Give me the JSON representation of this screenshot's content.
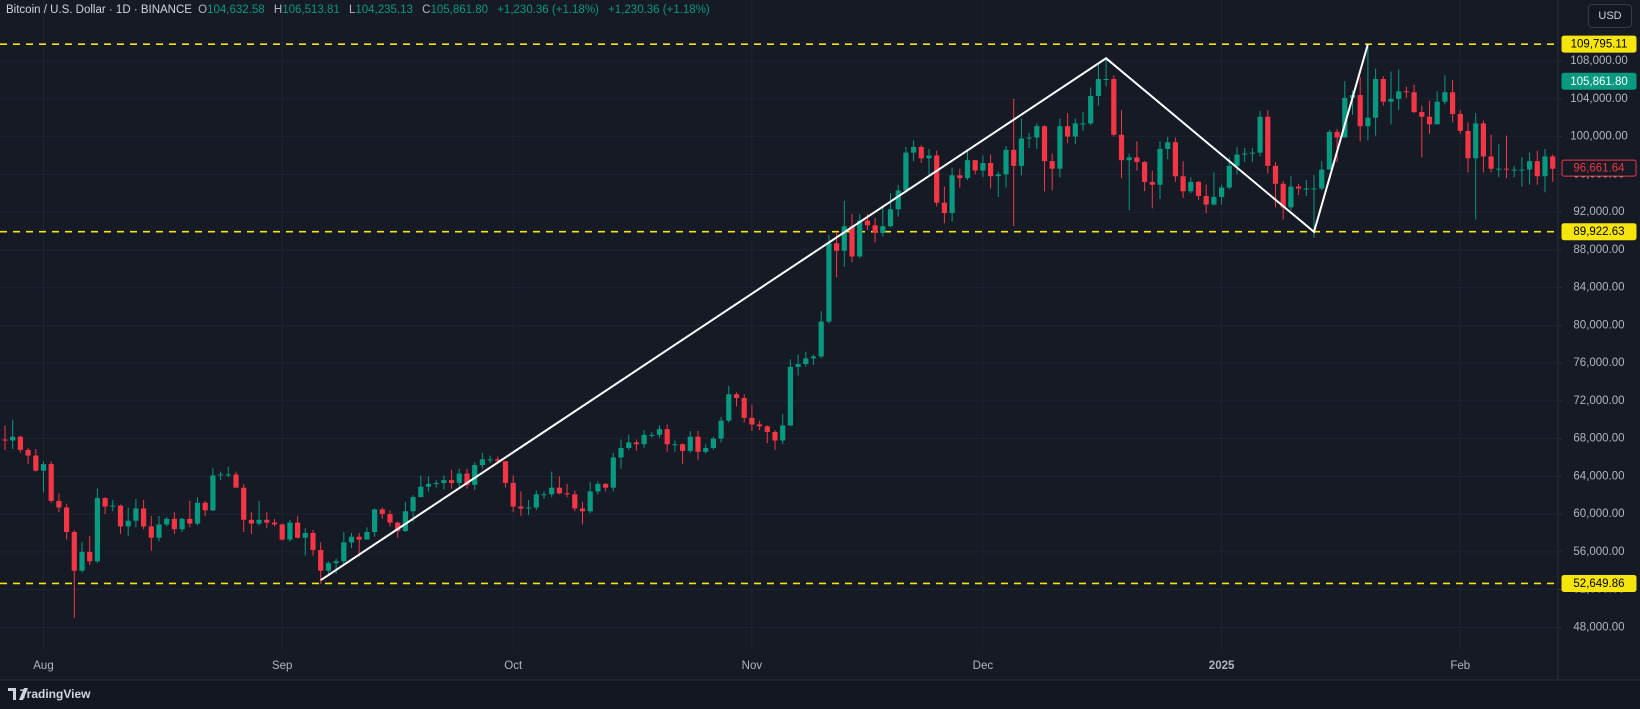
{
  "header": {
    "symbol": "Bitcoin / U.S. Dollar · 1D · BINANCE",
    "ohlc": [
      {
        "label": "O",
        "value": "104,632.58"
      },
      {
        "label": "H",
        "value": "106,513.81"
      },
      {
        "label": "L",
        "value": "104,235.13"
      },
      {
        "label": "C",
        "value": "105,861.80"
      }
    ],
    "changes": [
      "+1,230.36 (+1.18%)",
      "+1,230.36 (+1.18%)"
    ],
    "currency": "USD"
  },
  "footer": {
    "brand": "TradingView"
  },
  "chart_data": {
    "type": "candlestick",
    "grid": true,
    "up_color": "#089981",
    "down_color": "#f23645",
    "categories": [
      null,
      null,
      null,
      null,
      null,
      "Aug",
      null,
      null,
      null,
      null,
      null,
      null,
      null,
      null,
      null,
      null,
      null,
      null,
      null,
      null,
      null,
      null,
      null,
      null,
      null,
      null,
      null,
      null,
      null,
      null,
      null,
      null,
      null,
      null,
      null,
      null,
      "Sep",
      null,
      null,
      null,
      null,
      null,
      null,
      null,
      null,
      null,
      null,
      null,
      null,
      null,
      null,
      null,
      null,
      null,
      null,
      null,
      null,
      null,
      null,
      null,
      null,
      null,
      null,
      null,
      null,
      null,
      "Oct",
      null,
      null,
      null,
      null,
      null,
      null,
      null,
      null,
      null,
      null,
      null,
      null,
      null,
      null,
      null,
      null,
      null,
      null,
      null,
      null,
      null,
      null,
      null,
      null,
      null,
      null,
      null,
      null,
      null,
      null,
      "Nov",
      null,
      null,
      null,
      null,
      null,
      null,
      null,
      null,
      null,
      null,
      null,
      null,
      null,
      null,
      null,
      null,
      null,
      null,
      null,
      null,
      null,
      null,
      null,
      null,
      null,
      null,
      null,
      null,
      null,
      "Dec",
      null,
      null,
      null,
      null,
      null,
      null,
      null,
      null,
      null,
      null,
      null,
      null,
      null,
      null,
      null,
      null,
      null,
      null,
      null,
      null,
      null,
      null,
      null,
      null,
      null,
      null,
      null,
      null,
      null,
      null,
      "2025",
      null,
      null,
      null,
      null,
      null,
      null,
      null,
      null,
      null,
      null,
      null,
      null,
      null,
      null,
      null,
      null,
      null,
      null,
      null,
      null,
      null,
      null,
      null,
      null,
      null,
      null,
      null,
      null,
      null,
      null,
      "Feb",
      null,
      null,
      null,
      null,
      null,
      null,
      null,
      null,
      null,
      null,
      null,
      null
    ],
    "open": [
      67900,
      67800,
      68200,
      66800,
      66200,
      64600,
      65300,
      61400,
      60700,
      58100,
      54000,
      56000,
      55000,
      61700,
      60800,
      60900,
      58700,
      59300,
      60600,
      58700,
      57500,
      58900,
      59500,
      58400,
      59500,
      59000,
      61200,
      60400,
      64100,
      64200,
      64200,
      62800,
      59400,
      59000,
      59400,
      59100,
      58900,
      57300,
      59100,
      57500,
      58000,
      56200,
      54000,
      54800,
      55000,
      57000,
      57600,
      57300,
      58100,
      60500,
      60000,
      59100,
      58200,
      60300,
      61800,
      62900,
      63200,
      63300,
      63600,
      63300,
      64300,
      63100,
      65200,
      65800,
      65800,
      65600,
      63300,
      60800,
      60600,
      60700,
      62100,
      62100,
      62800,
      62200,
      62100,
      60600,
      60300,
      62400,
      63200,
      62800,
      66000,
      67000,
      67600,
      67400,
      68400,
      68400,
      69000,
      67400,
      67400,
      66700,
      68200,
      66600,
      67000,
      68000,
      69900,
      72700,
      72300,
      70200,
      69500,
      69300,
      68700,
      67800,
      69400,
      75600,
      75900,
      76500,
      76700,
      80400,
      88700,
      87900,
      90500,
      87300,
      91100,
      90600,
      89800,
      90500,
      92300,
      94300,
      98300,
      98900,
      97700,
      98000,
      93000,
      91900,
      95900,
      95600,
      97500,
      96400,
      97200,
      95800,
      96000,
      98600,
      96900,
      99800,
      99900,
      101100,
      97400,
      96600,
      101100,
      100000,
      101400,
      101400,
      104300,
      106100,
      106100,
      100200,
      97500,
      97800,
      97300,
      95200,
      94900,
      98700,
      99400,
      95800,
      94200,
      95200,
      93700,
      92800,
      93600,
      94600,
      96900,
      98100,
      98200,
      98300,
      102100,
      96900,
      95000,
      92500,
      94700,
      94500,
      94500,
      94500,
      96500,
      100500,
      99900,
      104100,
      104400,
      101100,
      102000,
      106100,
      103700,
      104000,
      104800,
      104700,
      102600,
      102100,
      101300,
      103700,
      104700,
      102400,
      100600,
      97700,
      101400,
      97900,
      96600,
      96600,
      96500,
      96500,
      96500,
      97400,
      95800,
      97900
    ],
    "high": [
      69400,
      70000,
      68300,
      67000,
      66900,
      65600,
      65600,
      62200,
      61100,
      58300,
      57000,
      57700,
      62700,
      61800,
      61500,
      61000,
      60700,
      61600,
      61500,
      59800,
      59800,
      59700,
      60200,
      59600,
      61400,
      61800,
      61400,
      64900,
      64500,
      65000,
      64500,
      63200,
      60200,
      61400,
      60200,
      59500,
      59000,
      59400,
      59800,
      58500,
      58300,
      57000,
      55000,
      55300,
      58100,
      58000,
      58000,
      58600,
      60600,
      60700,
      60400,
      59200,
      61300,
      62000,
      64100,
      64000,
      63600,
      64100,
      64700,
      64800,
      64800,
      65500,
      66500,
      66200,
      66100,
      65600,
      64100,
      62400,
      61500,
      62500,
      62400,
      64500,
      64000,
      63200,
      62500,
      61300,
      63400,
      63500,
      63300,
      66500,
      67900,
      68400,
      67900,
      68900,
      68700,
      69400,
      69500,
      67800,
      67500,
      68800,
      68800,
      67400,
      68200,
      70300,
      73600,
      72900,
      72700,
      71600,
      69900,
      69400,
      68900,
      70600,
      76400,
      76900,
      77200,
      76900,
      81500,
      89600,
      89900,
      93200,
      91800,
      91800,
      91800,
      91400,
      92600,
      94000,
      94900,
      98900,
      99600,
      99100,
      98700,
      98500,
      94700,
      96700,
      96600,
      98700,
      97500,
      98000,
      98100,
      96300,
      99000,
      104000,
      101900,
      100400,
      101400,
      101200,
      98200,
      101900,
      102500,
      101900,
      102600,
      105200,
      107800,
      108300,
      106500,
      102800,
      98200,
      99500,
      97400,
      96400,
      99500,
      100000,
      99900,
      97400,
      95700,
      95300,
      94900,
      96200,
      94900,
      97800,
      98900,
      98800,
      98800,
      102700,
      102800,
      97300,
      95300,
      95800,
      95000,
      95400,
      95900,
      97400,
      100700,
      100800,
      105900,
      104900,
      106300,
      109600,
      107200,
      106400,
      106900,
      107100,
      105300,
      105500,
      103300,
      103800,
      104800,
      106500,
      106000,
      102800,
      101500,
      102500,
      101700,
      100200,
      99200,
      100100,
      96900,
      97800,
      98300,
      98500,
      98700,
      98100
    ],
    "low": [
      66800,
      66900,
      66500,
      65300,
      64500,
      62300,
      61200,
      60200,
      57300,
      49000,
      53800,
      54600,
      54800,
      60000,
      60300,
      57900,
      57700,
      58600,
      58400,
      56100,
      57100,
      58700,
      57900,
      58100,
      58600,
      58800,
      59800,
      60300,
      63600,
      63900,
      62800,
      58100,
      57900,
      58800,
      58500,
      58700,
      57200,
      57100,
      57400,
      55600,
      55600,
      52600,
      53700,
      53700,
      54600,
      56400,
      55500,
      57300,
      57600,
      59500,
      58700,
      57500,
      58100,
      59200,
      61800,
      62400,
      62800,
      62600,
      62700,
      62700,
      62700,
      62600,
      64800,
      65400,
      65400,
      62800,
      60200,
      59800,
      59900,
      60400,
      61600,
      61800,
      62100,
      61800,
      60300,
      58900,
      60100,
      62100,
      62400,
      62400,
      64800,
      66800,
      66700,
      67000,
      68100,
      68100,
      66600,
      66600,
      65300,
      66500,
      65700,
      66400,
      66800,
      67600,
      69700,
      71400,
      69700,
      68800,
      68900,
      67500,
      66800,
      67400,
      69300,
      74700,
      75600,
      75800,
      76500,
      80200,
      85100,
      86200,
      86700,
      87100,
      90100,
      88800,
      89400,
      90400,
      91500,
      94100,
      97400,
      97200,
      95800,
      92600,
      90800,
      91000,
      94600,
      95400,
      96000,
      95700,
      94500,
      93600,
      94600,
      90500,
      95900,
      98800,
      98700,
      94200,
      94300,
      95700,
      99300,
      99200,
      100600,
      101200,
      103300,
      105300,
      100000,
      95600,
      92200,
      96400,
      94200,
      92400,
      93400,
      97600,
      95200,
      93500,
      94000,
      93300,
      91900,
      92700,
      92800,
      94400,
      96000,
      97300,
      97300,
      97900,
      96100,
      92500,
      91200,
      92200,
      93800,
      93700,
      89300,
      94300,
      96500,
      97300,
      99900,
      102300,
      99500,
      99600,
      100100,
      103300,
      101300,
      102800,
      104100,
      102500,
      97800,
      100300,
      101300,
      103400,
      101500,
      100300,
      96200,
      91200,
      96200,
      96200,
      95700,
      95600,
      95700,
      94700,
      94900,
      94900,
      94100,
      95200
    ],
    "close": [
      67800,
      68200,
      66800,
      66200,
      64600,
      65300,
      61400,
      60700,
      58100,
      54000,
      56000,
      55000,
      61700,
      60800,
      60900,
      58700,
      59300,
      60600,
      58700,
      57500,
      58900,
      59500,
      58400,
      59500,
      59000,
      61200,
      60400,
      64100,
      64200,
      64200,
      62800,
      59400,
      59000,
      59400,
      59100,
      58900,
      57300,
      59100,
      57500,
      58000,
      56200,
      54000,
      54800,
      55000,
      57000,
      57600,
      57300,
      58100,
      60500,
      60000,
      59100,
      58200,
      60300,
      61800,
      62900,
      63200,
      63300,
      63600,
      63300,
      64300,
      63100,
      65200,
      65800,
      65800,
      65600,
      63300,
      60800,
      60600,
      60700,
      62100,
      62100,
      62800,
      62200,
      62100,
      60600,
      60300,
      62400,
      63200,
      62800,
      66000,
      67000,
      67600,
      67400,
      68400,
      68400,
      69000,
      67400,
      67400,
      66700,
      68200,
      66600,
      67000,
      68000,
      69900,
      72700,
      72300,
      70200,
      69500,
      69300,
      68700,
      67800,
      69400,
      75600,
      75900,
      76500,
      76700,
      80400,
      88700,
      87900,
      90500,
      87300,
      91100,
      90600,
      89800,
      90500,
      92300,
      94300,
      98300,
      98900,
      97700,
      98000,
      93000,
      91900,
      95900,
      95600,
      97500,
      96400,
      97200,
      95800,
      96000,
      98600,
      96900,
      99800,
      99900,
      101100,
      97400,
      96600,
      101100,
      100000,
      101400,
      101400,
      104300,
      106100,
      106100,
      100200,
      97500,
      97800,
      97300,
      95200,
      94900,
      98700,
      99400,
      95800,
      94200,
      95200,
      93700,
      92800,
      93600,
      94600,
      96900,
      98100,
      98200,
      98300,
      102100,
      96900,
      95000,
      92500,
      94700,
      94500,
      94500,
      94500,
      96500,
      100500,
      99900,
      104100,
      104400,
      101100,
      102000,
      106100,
      103700,
      104000,
      104800,
      104700,
      102600,
      102100,
      101300,
      103700,
      104700,
      102400,
      100600,
      97700,
      101400,
      97900,
      96600,
      96600,
      96500,
      96500,
      96500,
      97400,
      95800,
      97900,
      96600
    ],
    "ylim": [
      45600,
      111400
    ],
    "yticks": [
      {
        "value": 48000,
        "label": "48,000.00"
      },
      {
        "value": 52000,
        "label": "52,000.00"
      },
      {
        "value": 56000,
        "label": "56,000.00"
      },
      {
        "value": 60000,
        "label": "60,000.00"
      },
      {
        "value": 64000,
        "label": "64,000.00"
      },
      {
        "value": 68000,
        "label": "68,000.00"
      },
      {
        "value": 72000,
        "label": "72,000.00"
      },
      {
        "value": 76000,
        "label": "76,000.00"
      },
      {
        "value": 80000,
        "label": "80,000.00"
      },
      {
        "value": 84000,
        "label": "84,000.00"
      },
      {
        "value": 88000,
        "label": "88,000.00"
      },
      {
        "value": 92000,
        "label": "92,000.00"
      },
      {
        "value": 96000,
        "label": "96,000.00"
      },
      {
        "value": 100000,
        "label": "100,000.00"
      },
      {
        "value": 104000,
        "label": "104,000.00"
      },
      {
        "value": 108000,
        "label": "108,000.00"
      }
    ],
    "levels": [
      {
        "value": 109795.11,
        "label": "109,795.11"
      },
      {
        "value": 89922.63,
        "label": "89,922.63"
      },
      {
        "value": 52649.86,
        "label": "52,649.86"
      }
    ],
    "level_color": "#f5e50a",
    "price_markers": [
      {
        "value": 105861.8,
        "label": "105,861.80",
        "color": "#089981"
      },
      {
        "value": 96661.64,
        "label": "96,661.64",
        "color": "#f23645"
      }
    ],
    "trend_line": {
      "x": [
        41,
        143,
        170,
        177
      ],
      "y": [
        53000,
        108300,
        89900,
        109800
      ],
      "color": "#ffffff"
    }
  }
}
